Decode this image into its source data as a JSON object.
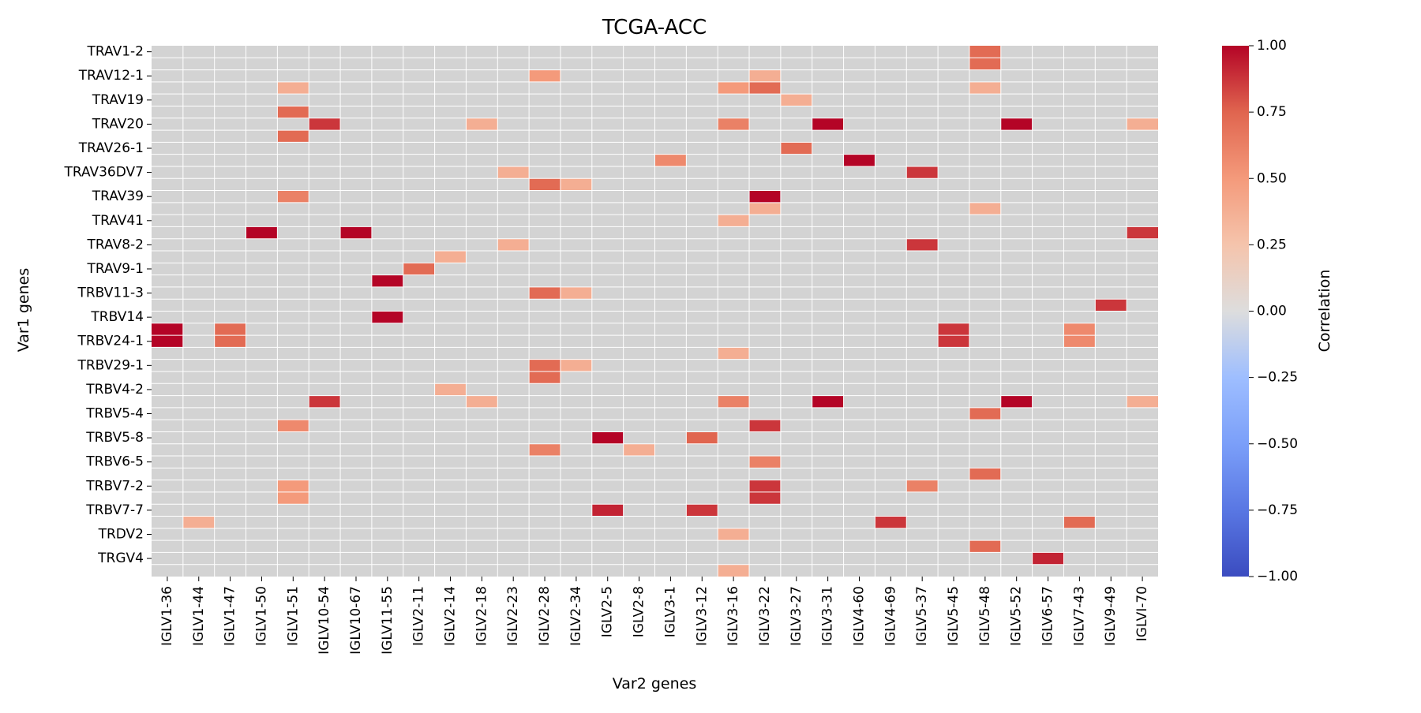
{
  "chart_data": {
    "type": "heatmap",
    "title": "TCGA-ACC",
    "xlabel": "Var2 genes",
    "ylabel": "Var1 genes",
    "colorbar": {
      "label": "Correlation",
      "range": [
        -1.0,
        1.0
      ],
      "ticks": [
        "1.00",
        "0.75",
        "0.50",
        "0.25",
        "0.00",
        "−0.25",
        "−0.50",
        "−0.75",
        "−1.00"
      ],
      "colormap": "coolwarm",
      "low_color": "#3b4cc0",
      "mid_color": "#dddddd",
      "high_color": "#b40426"
    },
    "background_color": "#d3d3d3",
    "grid_color": "#ffffff",
    "x_tick_labels": [
      "IGLV1-36",
      "IGLV1-44",
      "IGLV1-47",
      "IGLV1-50",
      "IGLV1-51",
      "IGLV10-54",
      "IGLV10-67",
      "IGLV11-55",
      "IGLV2-11",
      "IGLV2-14",
      "IGLV2-18",
      "IGLV2-23",
      "IGLV2-28",
      "IGLV2-34",
      "IGLV2-5",
      "IGLV2-8",
      "IGLV3-1",
      "IGLV3-12",
      "IGLV3-16",
      "IGLV3-22",
      "IGLV3-27",
      "IGLV3-31",
      "IGLV4-60",
      "IGLV4-69",
      "IGLV5-37",
      "IGLV5-45",
      "IGLV5-48",
      "IGLV5-52",
      "IGLV6-57",
      "IGLV7-43",
      "IGLV9-49",
      "IGLVI-70"
    ],
    "row_count": 44,
    "y_tick_labels": [
      {
        "row": 0,
        "label": "TRAV1-2"
      },
      {
        "row": 2,
        "label": "TRAV12-1"
      },
      {
        "row": 4,
        "label": "TRAV19"
      },
      {
        "row": 6,
        "label": "TRAV20"
      },
      {
        "row": 8,
        "label": "TRAV26-1"
      },
      {
        "row": 10,
        "label": "TRAV36DV7"
      },
      {
        "row": 12,
        "label": "TRAV39"
      },
      {
        "row": 14,
        "label": "TRAV41"
      },
      {
        "row": 16,
        "label": "TRAV8-2"
      },
      {
        "row": 18,
        "label": "TRAV9-1"
      },
      {
        "row": 20,
        "label": "TRBV11-3"
      },
      {
        "row": 22,
        "label": "TRBV14"
      },
      {
        "row": 24,
        "label": "TRBV24-1"
      },
      {
        "row": 26,
        "label": "TRBV29-1"
      },
      {
        "row": 28,
        "label": "TRBV4-2"
      },
      {
        "row": 30,
        "label": "TRBV5-4"
      },
      {
        "row": 32,
        "label": "TRBV5-8"
      },
      {
        "row": 34,
        "label": "TRBV6-5"
      },
      {
        "row": 36,
        "label": "TRBV7-2"
      },
      {
        "row": 38,
        "label": "TRBV7-7"
      },
      {
        "row": 40,
        "label": "TRDV2"
      },
      {
        "row": 42,
        "label": "TRGV4"
      }
    ],
    "cells": [
      {
        "row": 0,
        "col": 26,
        "value": 0.72
      },
      {
        "row": 1,
        "col": 26,
        "value": 0.72
      },
      {
        "row": 2,
        "col": 12,
        "value": 0.5
      },
      {
        "row": 2,
        "col": 19,
        "value": 0.38
      },
      {
        "row": 3,
        "col": 4,
        "value": 0.38
      },
      {
        "row": 3,
        "col": 18,
        "value": 0.5
      },
      {
        "row": 3,
        "col": 19,
        "value": 0.72
      },
      {
        "row": 3,
        "col": 26,
        "value": 0.38
      },
      {
        "row": 4,
        "col": 20,
        "value": 0.38
      },
      {
        "row": 5,
        "col": 4,
        "value": 0.72
      },
      {
        "row": 6,
        "col": 5,
        "value": 0.87
      },
      {
        "row": 6,
        "col": 10,
        "value": 0.38
      },
      {
        "row": 6,
        "col": 18,
        "value": 0.62
      },
      {
        "row": 6,
        "col": 21,
        "value": 1.0
      },
      {
        "row": 6,
        "col": 27,
        "value": 1.0
      },
      {
        "row": 6,
        "col": 31,
        "value": 0.38
      },
      {
        "row": 7,
        "col": 4,
        "value": 0.72
      },
      {
        "row": 8,
        "col": 20,
        "value": 0.72
      },
      {
        "row": 9,
        "col": 16,
        "value": 0.58
      },
      {
        "row": 9,
        "col": 22,
        "value": 1.0
      },
      {
        "row": 10,
        "col": 11,
        "value": 0.38
      },
      {
        "row": 10,
        "col": 24,
        "value": 0.87
      },
      {
        "row": 11,
        "col": 12,
        "value": 0.72
      },
      {
        "row": 11,
        "col": 13,
        "value": 0.38
      },
      {
        "row": 12,
        "col": 4,
        "value": 0.62
      },
      {
        "row": 12,
        "col": 19,
        "value": 1.0
      },
      {
        "row": 13,
        "col": 19,
        "value": 0.38
      },
      {
        "row": 13,
        "col": 26,
        "value": 0.38
      },
      {
        "row": 14,
        "col": 18,
        "value": 0.38
      },
      {
        "row": 15,
        "col": 3,
        "value": 1.0
      },
      {
        "row": 15,
        "col": 6,
        "value": 1.0
      },
      {
        "row": 15,
        "col": 31,
        "value": 0.87
      },
      {
        "row": 16,
        "col": 11,
        "value": 0.38
      },
      {
        "row": 16,
        "col": 24,
        "value": 0.87
      },
      {
        "row": 17,
        "col": 9,
        "value": 0.38
      },
      {
        "row": 18,
        "col": 8,
        "value": 0.72
      },
      {
        "row": 19,
        "col": 7,
        "value": 1.0
      },
      {
        "row": 20,
        "col": 12,
        "value": 0.72
      },
      {
        "row": 20,
        "col": 13,
        "value": 0.38
      },
      {
        "row": 21,
        "col": 30,
        "value": 0.87
      },
      {
        "row": 22,
        "col": 7,
        "value": 1.0
      },
      {
        "row": 23,
        "col": 0,
        "value": 1.0
      },
      {
        "row": 23,
        "col": 2,
        "value": 0.72
      },
      {
        "row": 23,
        "col": 25,
        "value": 0.87
      },
      {
        "row": 23,
        "col": 29,
        "value": 0.58
      },
      {
        "row": 24,
        "col": 0,
        "value": 1.0
      },
      {
        "row": 24,
        "col": 2,
        "value": 0.72
      },
      {
        "row": 24,
        "col": 25,
        "value": 0.87
      },
      {
        "row": 24,
        "col": 29,
        "value": 0.58
      },
      {
        "row": 25,
        "col": 18,
        "value": 0.38
      },
      {
        "row": 26,
        "col": 12,
        "value": 0.72
      },
      {
        "row": 26,
        "col": 13,
        "value": 0.38
      },
      {
        "row": 27,
        "col": 12,
        "value": 0.72
      },
      {
        "row": 28,
        "col": 9,
        "value": 0.38
      },
      {
        "row": 29,
        "col": 5,
        "value": 0.87
      },
      {
        "row": 29,
        "col": 10,
        "value": 0.38
      },
      {
        "row": 29,
        "col": 18,
        "value": 0.62
      },
      {
        "row": 29,
        "col": 21,
        "value": 1.0
      },
      {
        "row": 29,
        "col": 27,
        "value": 1.0
      },
      {
        "row": 29,
        "col": 31,
        "value": 0.38
      },
      {
        "row": 30,
        "col": 26,
        "value": 0.72
      },
      {
        "row": 31,
        "col": 4,
        "value": 0.58
      },
      {
        "row": 31,
        "col": 19,
        "value": 0.87
      },
      {
        "row": 32,
        "col": 14,
        "value": 1.0
      },
      {
        "row": 32,
        "col": 17,
        "value": 0.75
      },
      {
        "row": 33,
        "col": 12,
        "value": 0.62
      },
      {
        "row": 33,
        "col": 15,
        "value": 0.38
      },
      {
        "row": 34,
        "col": 19,
        "value": 0.62
      },
      {
        "row": 35,
        "col": 26,
        "value": 0.72
      },
      {
        "row": 36,
        "col": 4,
        "value": 0.5
      },
      {
        "row": 36,
        "col": 19,
        "value": 0.87
      },
      {
        "row": 36,
        "col": 24,
        "value": 0.62
      },
      {
        "row": 37,
        "col": 4,
        "value": 0.5
      },
      {
        "row": 37,
        "col": 19,
        "value": 0.87
      },
      {
        "row": 38,
        "col": 14,
        "value": 0.92
      },
      {
        "row": 38,
        "col": 17,
        "value": 0.87
      },
      {
        "row": 39,
        "col": 1,
        "value": 0.38
      },
      {
        "row": 39,
        "col": 23,
        "value": 0.87
      },
      {
        "row": 39,
        "col": 29,
        "value": 0.72
      },
      {
        "row": 40,
        "col": 18,
        "value": 0.38
      },
      {
        "row": 41,
        "col": 26,
        "value": 0.72
      },
      {
        "row": 42,
        "col": 28,
        "value": 0.92
      },
      {
        "row": 43,
        "col": 18,
        "value": 0.38
      }
    ]
  }
}
